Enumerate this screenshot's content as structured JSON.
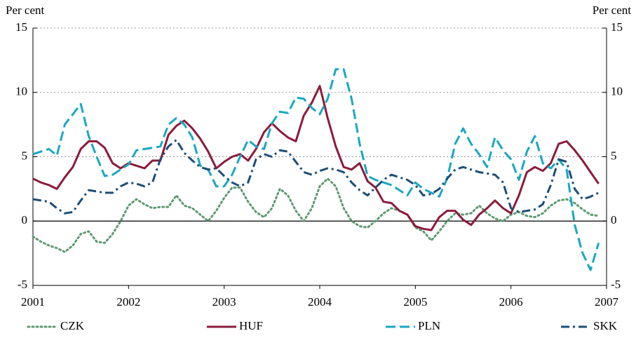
{
  "chart_data": {
    "type": "line",
    "y_label": "Per cent",
    "y2_label": "Per cent",
    "x": [
      2001,
      2001.083,
      2001.167,
      2001.25,
      2001.333,
      2001.417,
      2001.5,
      2001.583,
      2001.667,
      2001.75,
      2001.833,
      2001.917,
      2002,
      2002.083,
      2002.167,
      2002.25,
      2002.333,
      2002.417,
      2002.5,
      2002.583,
      2002.667,
      2002.75,
      2002.833,
      2002.917,
      2003,
      2003.083,
      2003.167,
      2003.25,
      2003.333,
      2003.417,
      2003.5,
      2003.583,
      2003.667,
      2003.75,
      2003.833,
      2003.917,
      2004,
      2004.083,
      2004.167,
      2004.25,
      2004.333,
      2004.417,
      2004.5,
      2004.583,
      2004.667,
      2004.75,
      2004.833,
      2004.917,
      2005,
      2005.083,
      2005.167,
      2005.25,
      2005.333,
      2005.417,
      2005.5,
      2005.583,
      2005.667,
      2005.75,
      2005.833,
      2005.917,
      2006,
      2006.083,
      2006.167,
      2006.25,
      2006.333,
      2006.417,
      2006.5,
      2006.583,
      2006.667,
      2006.75,
      2006.833,
      2006.917
    ],
    "series": [
      {
        "name": "CZK",
        "color": "#5e9a72",
        "style": "dotted",
        "values": [
          -1.2,
          -1.6,
          -1.9,
          -2.1,
          -2.4,
          -1.9,
          -1.0,
          -0.8,
          -1.6,
          -1.7,
          -1.0,
          0.0,
          1.2,
          1.7,
          1.3,
          1.0,
          1.1,
          1.1,
          2.0,
          1.2,
          1.0,
          0.5,
          0.0,
          0.8,
          1.8,
          2.6,
          2.6,
          1.5,
          0.7,
          0.3,
          1.0,
          2.5,
          2.0,
          0.8,
          0.0,
          1.0,
          2.7,
          3.3,
          2.7,
          1.0,
          0.0,
          -0.4,
          -0.5,
          0.0,
          0.6,
          1.0,
          0.8,
          0.5,
          -0.5,
          -0.8,
          -1.5,
          -0.8,
          0.0,
          0.6,
          0.5,
          0.6,
          1.2,
          0.6,
          0.2,
          0.0,
          0.5,
          0.7,
          0.4,
          0.3,
          0.6,
          1.2,
          1.6,
          1.7,
          1.4,
          0.9,
          0.5,
          0.4
        ]
      },
      {
        "name": "HUF",
        "color": "#8c1b3c",
        "style": "solid",
        "values": [
          3.3,
          3.0,
          2.8,
          2.5,
          3.4,
          4.2,
          5.6,
          6.2,
          6.2,
          5.7,
          4.5,
          4.1,
          4.5,
          4.3,
          4.1,
          4.7,
          4.7,
          6.7,
          7.4,
          7.8,
          7.2,
          6.4,
          5.4,
          4.1,
          4.6,
          5.0,
          5.2,
          4.7,
          5.6,
          6.9,
          7.6,
          7.0,
          6.5,
          6.2,
          8.2,
          9.2,
          10.5,
          8.0,
          5.8,
          4.2,
          4.0,
          4.5,
          3.1,
          2.6,
          1.5,
          1.4,
          0.8,
          0.5,
          -0.4,
          -0.6,
          -0.7,
          0.3,
          0.8,
          0.8,
          0.1,
          -0.3,
          0.5,
          1.0,
          1.6,
          1.0,
          0.6,
          2.0,
          3.8,
          4.2,
          3.9,
          4.5,
          6.0,
          6.2,
          5.5,
          4.7,
          3.8,
          2.9
        ]
      },
      {
        "name": "PLN",
        "color": "#19a8c2",
        "style": "dashed",
        "values": [
          5.2,
          5.4,
          5.6,
          5.1,
          7.5,
          8.3,
          9.1,
          6.6,
          5.0,
          3.5,
          3.6,
          4.0,
          4.4,
          5.5,
          5.6,
          5.7,
          5.8,
          7.5,
          8.0,
          7.5,
          6.5,
          4.3,
          4.0,
          2.7,
          2.7,
          3.6,
          5.0,
          6.3,
          5.8,
          5.6,
          7.6,
          8.5,
          8.4,
          9.6,
          9.5,
          8.8,
          8.3,
          9.5,
          11.8,
          11.8,
          9.5,
          6.0,
          3.5,
          3.2,
          3.0,
          2.8,
          2.4,
          2.0,
          3.0,
          2.5,
          2.2,
          1.9,
          3.3,
          6.0,
          7.2,
          6.0,
          5.2,
          4.2,
          6.5,
          5.5,
          4.8,
          3.2,
          5.4,
          6.6,
          4.5,
          4.1,
          4.8,
          4.0,
          -0.3,
          -2.5,
          -3.8,
          -1.7
        ]
      },
      {
        "name": "SKK",
        "color": "#1c4e78",
        "style": "dashdot",
        "values": [
          1.7,
          1.6,
          1.5,
          1.0,
          0.6,
          0.7,
          1.6,
          2.4,
          2.3,
          2.2,
          2.2,
          2.7,
          3.0,
          2.9,
          2.7,
          3.0,
          4.8,
          5.8,
          6.3,
          5.3,
          4.7,
          4.2,
          4.0,
          4.1,
          3.5,
          3.0,
          2.7,
          3.0,
          4.8,
          5.2,
          5.0,
          5.5,
          5.4,
          4.6,
          3.8,
          3.6,
          3.9,
          4.1,
          4.0,
          3.8,
          3.0,
          2.4,
          2.0,
          2.6,
          3.2,
          3.6,
          3.4,
          3.2,
          2.8,
          2.0,
          2.1,
          2.5,
          3.3,
          4.0,
          4.2,
          4.0,
          3.8,
          3.7,
          3.6,
          3.0,
          1.0,
          0.7,
          0.8,
          0.9,
          1.3,
          2.8,
          4.8,
          4.6,
          2.5,
          1.7,
          1.9,
          2.2
        ]
      }
    ],
    "xlim": [
      2001,
      2007
    ],
    "xticks": [
      2001,
      2002,
      2003,
      2004,
      2005,
      2006,
      2007
    ],
    "ylim": [
      -5,
      15
    ],
    "yticks": [
      -5,
      0,
      5,
      10,
      15
    ],
    "y2lim": [
      -5,
      15
    ],
    "y2ticks": [
      -5,
      0,
      5,
      10,
      15
    ],
    "grid": true,
    "legend": "bottom"
  }
}
